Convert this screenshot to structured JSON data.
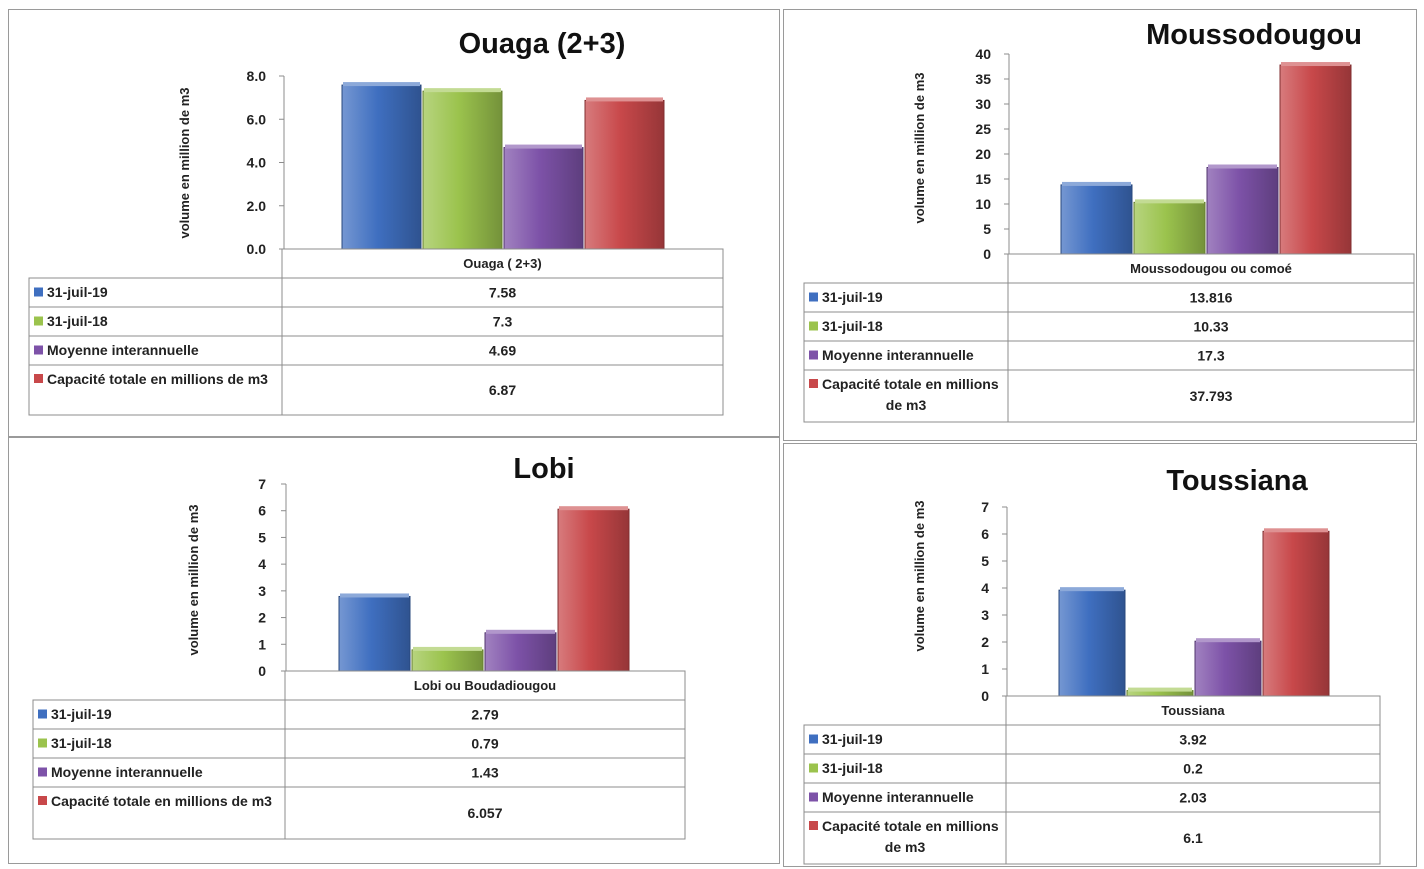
{
  "colors": {
    "series": [
      "#3f6fc0",
      "#9bc34d",
      "#7d52a8",
      "#c8484a"
    ],
    "border": "#9a9a9a",
    "axis": "#8c8c8c"
  },
  "chart_data": [
    {
      "type": "bar",
      "title": "Ouaga (2+3)",
      "ylabel": "volume en million de m3",
      "categories": [
        "Ouaga ( 2+3)"
      ],
      "ylim": [
        0,
        8
      ],
      "ytick_step": 2,
      "tick_labels": [
        "0.0",
        "2.0",
        "4.0",
        "6.0",
        "8.0"
      ],
      "series": [
        {
          "name": "31-juil-19",
          "values": [
            7.58
          ],
          "label": "7.58"
        },
        {
          "name": "31-juil-18",
          "values": [
            7.3
          ],
          "label": "7.3"
        },
        {
          "name": "Moyenne interannuelle",
          "values": [
            4.69
          ],
          "label": "4.69"
        },
        {
          "name": "Capacité totale en millions de m3",
          "values": [
            6.87
          ],
          "label": "6.87"
        }
      ]
    },
    {
      "type": "bar",
      "title": "Moussodougou",
      "ylabel": "volume en million de m3",
      "categories": [
        "Moussodougou ou comoé"
      ],
      "ylim": [
        0,
        40
      ],
      "ytick_step": 5,
      "tick_labels": [
        "0",
        "5",
        "10",
        "15",
        "20",
        "25",
        "30",
        "35",
        "40"
      ],
      "series": [
        {
          "name": "31-juil-19",
          "values": [
            13.816
          ],
          "label": "13.816"
        },
        {
          "name": "31-juil-18",
          "values": [
            10.33
          ],
          "label": "10.33"
        },
        {
          "name": "Moyenne interannuelle",
          "values": [
            17.3
          ],
          "label": "17.3"
        },
        {
          "name": "Capacité totale en millions de m3",
          "values": [
            37.793
          ],
          "label": "37.793"
        }
      ]
    },
    {
      "type": "bar",
      "title": "Lobi",
      "ylabel": "volume en million de m3",
      "categories": [
        "Lobi ou Boudadiougou"
      ],
      "ylim": [
        0,
        7
      ],
      "ytick_step": 1,
      "tick_labels": [
        "0",
        "1",
        "2",
        "3",
        "4",
        "5",
        "6",
        "7"
      ],
      "series": [
        {
          "name": "31-juil-19",
          "values": [
            2.79
          ],
          "label": "2.79"
        },
        {
          "name": "31-juil-18",
          "values": [
            0.79
          ],
          "label": "0.79"
        },
        {
          "name": "Moyenne interannuelle",
          "values": [
            1.43
          ],
          "label": "1.43"
        },
        {
          "name": "Capacité totale en millions de m3",
          "values": [
            6.057
          ],
          "label": "6.057"
        }
      ]
    },
    {
      "type": "bar",
      "title": "Toussiana",
      "ylabel": "volume en million de m3",
      "categories": [
        "Toussiana"
      ],
      "ylim": [
        0,
        7
      ],
      "ytick_step": 1,
      "tick_labels": [
        "0",
        "1",
        "2",
        "3",
        "4",
        "5",
        "6",
        "7"
      ],
      "series": [
        {
          "name": "31-juil-19",
          "values": [
            3.92
          ],
          "label": "3.92"
        },
        {
          "name": "31-juil-18",
          "values": [
            0.2
          ],
          "label": "0.2"
        },
        {
          "name": "Moyenne interannuelle",
          "values": [
            2.03
          ],
          "label": "2.03"
        },
        {
          "name": "Capacité totale en millions de m3",
          "values": [
            6.1
          ],
          "label": "6.1"
        }
      ]
    }
  ]
}
